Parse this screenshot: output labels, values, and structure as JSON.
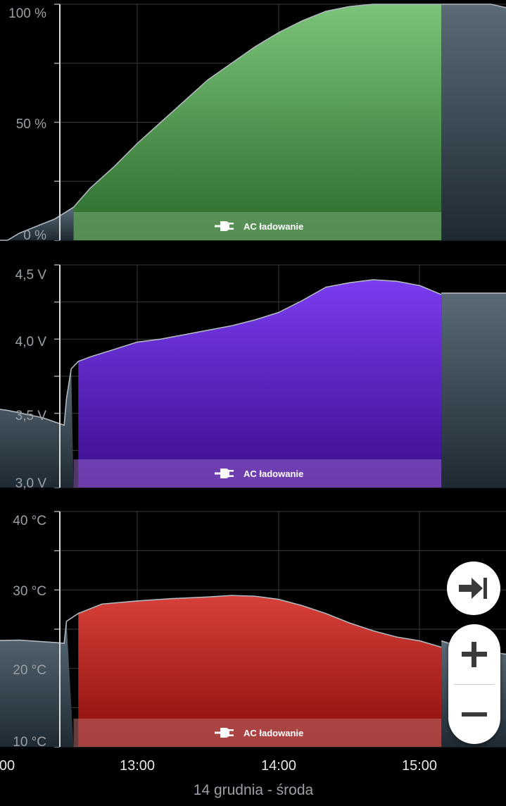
{
  "colors": {
    "battery": "#5cae5c",
    "voltage": "#6b2fe0",
    "temperature": "#c9332d",
    "inactive": "#4a5a66",
    "grid": "#3a3a3a"
  },
  "charging_label": "AC ładowanie",
  "charging_icon": "plug-icon",
  "x_axis": {
    "ticks": [
      "00",
      "13:00",
      "14:00",
      "15:00"
    ],
    "date_label": "14 grudnia - środa",
    "charging_start": "12:33",
    "charging_end": "15:09"
  },
  "chart_data": [
    {
      "type": "area",
      "title": "",
      "ylabel": "",
      "yticks": [
        "100 %",
        "50 %",
        "0 %"
      ],
      "ylim": [
        0,
        100
      ],
      "series": [
        {
          "x": [
            "11:33",
            "11:55",
            "12:00",
            "12:05",
            "12:10",
            "12:15",
            "12:20",
            "12:25",
            "12:33",
            "12:40",
            "12:50",
            "13:00",
            "13:10",
            "13:20",
            "13:30",
            "13:40",
            "13:50",
            "14:00",
            "14:10",
            "14:20",
            "14:30",
            "14:40",
            "14:50",
            "15:00",
            "15:09"
          ],
          "y": [
            3,
            1,
            0,
            0,
            3,
            5,
            7,
            9,
            14,
            22,
            31,
            41,
            50,
            59,
            68,
            75,
            82,
            88,
            93,
            97,
            99,
            100,
            100,
            100,
            100
          ]
        }
      ],
      "after_series": {
        "x": [
          "15:09",
          "15:30",
          "15:39"
        ],
        "y": [
          100,
          100,
          98
        ]
      }
    },
    {
      "type": "area",
      "title": "",
      "ylabel": "",
      "yticks": [
        "4,5 V",
        "4,0 V",
        "3,5 V",
        "3,0 V"
      ],
      "ylim": [
        3.0,
        4.5
      ],
      "series": [
        {
          "x": [
            "11:33",
            "11:50",
            "12:05",
            "12:20",
            "12:29",
            "12:30",
            "12:32",
            "12:35",
            "12:40",
            "12:50",
            "13:00",
            "13:10",
            "13:20",
            "13:30",
            "13:40",
            "13:50",
            "14:00",
            "14:10",
            "14:20",
            "14:30",
            "14:40",
            "14:50",
            "15:00",
            "15:09"
          ],
          "y": [
            3.57,
            3.55,
            3.52,
            3.47,
            3.42,
            3.6,
            3.8,
            3.85,
            3.88,
            3.93,
            3.98,
            4.0,
            4.03,
            4.06,
            4.09,
            4.13,
            4.18,
            4.26,
            4.35,
            4.38,
            4.4,
            4.39,
            4.36,
            4.3
          ]
        }
      ],
      "after_series": {
        "x": [
          "15:09",
          "15:39"
        ],
        "y": [
          4.31,
          4.31
        ]
      }
    },
    {
      "type": "area",
      "title": "",
      "ylabel": "",
      "yticks": [
        "40 °C",
        "30 °C",
        "20 °C",
        "10 °C"
      ],
      "ylim": [
        10,
        40
      ],
      "series": [
        {
          "x": [
            "11:33",
            "11:50",
            "12:10",
            "12:25",
            "12:29",
            "12:30",
            "12:35",
            "12:45",
            "13:00",
            "13:15",
            "13:30",
            "13:40",
            "13:50",
            "14:00",
            "14:10",
            "14:20",
            "14:30",
            "14:40",
            "14:50",
            "15:00",
            "15:09"
          ],
          "y": [
            23.5,
            23.5,
            23.6,
            23.3,
            23.2,
            26.0,
            27.0,
            28.2,
            28.6,
            28.9,
            29.1,
            29.3,
            29.2,
            28.8,
            28.0,
            27.0,
            25.8,
            24.8,
            24.0,
            23.5,
            22.7
          ]
        }
      ],
      "after_series": {
        "x": [
          "15:09",
          "15:20",
          "15:39"
        ],
        "y": [
          23.5,
          22.5,
          21.7
        ]
      }
    }
  ],
  "controls": {
    "jump_to_end_icon": "jump-to-end-icon",
    "zoom_in_icon": "plus-icon",
    "zoom_out_icon": "minus-icon"
  }
}
